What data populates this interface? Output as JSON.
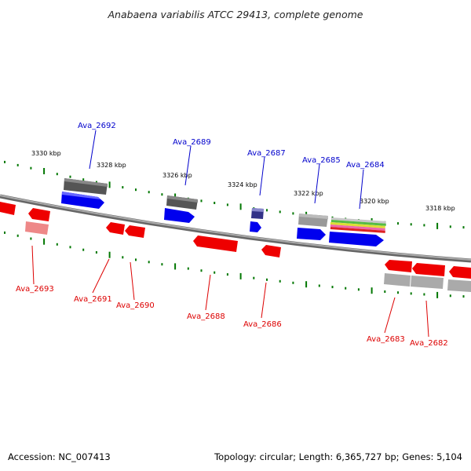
{
  "title": "Anabaena variabilis ATCC 29413, complete genome",
  "footer": {
    "accession": "Accession: NC_007413",
    "summary": "Topology: circular; Length: 6,365,727 bp; Genes: 5,104"
  },
  "scale_ticks": [
    "3330 kbp",
    "3328 kbp",
    "3326 kbp",
    "3324 kbp",
    "3322 kbp",
    "3320 kbp",
    "3318 kbp"
  ],
  "forward_genes": [
    "Ava_2692",
    "Ava_2689",
    "Ava_2687",
    "Ava_2685",
    "Ava_2684"
  ],
  "reverse_genes": [
    "Ava_2693",
    "Ava_2691",
    "Ava_2690",
    "Ava_2688",
    "Ava_2686",
    "Ava_2683",
    "Ava_2682"
  ],
  "colors": {
    "forward_label": "#0000cc",
    "reverse_label": "#dd0000",
    "forward_cds": "#0000ee",
    "reverse_cds": "#ee0000",
    "tick": "#007700",
    "backbone": "#888888"
  }
}
